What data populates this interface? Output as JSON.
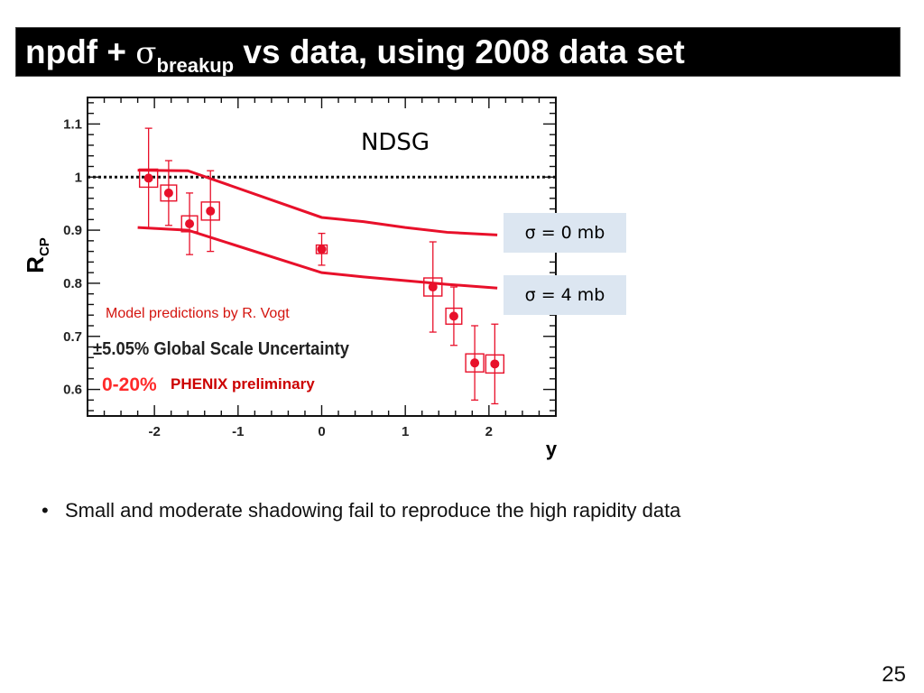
{
  "slide": {
    "title_main": "npdf + ",
    "title_sigma": "σ",
    "title_sub": "breakup",
    "title_rest": " vs data, using 2008 data set",
    "bullet": "Small and moderate shadowing fail to reproduce the high rapidity data",
    "page_number": "25"
  },
  "chart_data": {
    "type": "scatter",
    "title": "NDSG",
    "xlabel": "y",
    "ylabel": "R",
    "ylabel_sub": "CP",
    "xlim": [
      -2.8,
      2.8
    ],
    "ylim": [
      0.55,
      1.15
    ],
    "x_ticks": [
      -2,
      -1,
      0,
      1,
      2
    ],
    "x_tick_labels": [
      "-2",
      "-1",
      "0",
      "1",
      "2"
    ],
    "y_ticks": [
      0.6,
      0.7,
      0.8,
      0.9,
      1.0,
      1.1
    ],
    "y_tick_labels": [
      "0.6",
      "0.7",
      "0.8",
      "0.9",
      "1",
      "1.1"
    ],
    "reference_line": 1.0,
    "grid": false,
    "series": [
      {
        "x": [
          -2.07,
          -1.83,
          -1.58,
          -1.33,
          0.0,
          1.33,
          1.58,
          1.83,
          2.07
        ],
        "y": [
          0.998,
          0.97,
          0.912,
          0.936,
          0.864,
          0.793,
          0.738,
          0.65,
          0.648
        ],
        "err_up": [
          0.094,
          0.061,
          0.058,
          0.076,
          0.03,
          0.085,
          0.055,
          0.07,
          0.075
        ],
        "err_down": [
          0.094,
          0.061,
          0.058,
          0.076,
          0.03,
          0.085,
          0.055,
          0.07,
          0.075
        ],
        "sys": [
          0.017,
          0.015,
          0.015,
          0.017,
          0.008,
          0.017,
          0.015,
          0.017,
          0.017
        ]
      }
    ],
    "model_curves": [
      {
        "name": "σ = 0 mb",
        "x": [
          -2.2,
          -1.6,
          0.0,
          0.5,
          1.0,
          1.5,
          2.1
        ],
        "y": [
          1.013,
          1.012,
          0.924,
          0.916,
          0.905,
          0.896,
          0.891
        ]
      },
      {
        "name": "σ = 4 mb",
        "x": [
          -2.2,
          -1.6,
          0.0,
          0.5,
          1.0,
          1.5,
          2.1
        ],
        "y": [
          0.905,
          0.9,
          0.82,
          0.812,
          0.805,
          0.798,
          0.791
        ]
      }
    ],
    "annotations": {
      "model_credit": "Model predictions by R. Vogt",
      "scale_uncertainty": "±5.05% Global Scale Uncertainty",
      "centrality": "0-20%",
      "collaboration": "PHENIX preliminary"
    },
    "colors": {
      "data": "#e8102a",
      "model": "#e8102a",
      "credit": "#d4140e",
      "centrality": "#ff2a2a",
      "collab": "#cc0000",
      "label_box": "#dce6f1"
    }
  }
}
